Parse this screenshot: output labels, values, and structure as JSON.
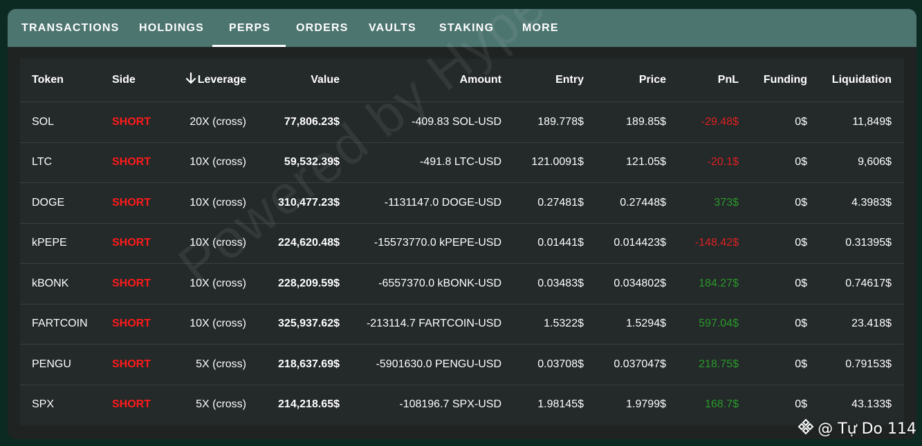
{
  "tabs": [
    {
      "label": "TRANSACTIONS"
    },
    {
      "label": "HOLDINGS"
    },
    {
      "label": "PERPS",
      "active": true
    },
    {
      "label": "ORDERS"
    },
    {
      "label": "VAULTS"
    },
    {
      "label": "STAKING"
    },
    {
      "label": "MORE"
    }
  ],
  "table": {
    "headers": {
      "token": "Token",
      "side": "Side",
      "leverage": "Leverage",
      "value": "Value",
      "amount": "Amount",
      "entry": "Entry",
      "price": "Price",
      "pnl": "PnL",
      "funding": "Funding",
      "liquidation": "Liquidation"
    },
    "sort_icon": "arrow-down-icon",
    "rows": [
      {
        "token": "SOL",
        "side": "SHORT",
        "leverage": "20X (cross)",
        "value": "77,806.23$",
        "amount": "-409.83 SOL-USD",
        "entry": "189.778$",
        "price": "189.85$",
        "pnl": "-29.48$",
        "pnl_sign": "neg",
        "funding": "0$",
        "liquidation": "11,849$"
      },
      {
        "token": "LTC",
        "side": "SHORT",
        "leverage": "10X (cross)",
        "value": "59,532.39$",
        "amount": "-491.8 LTC-USD",
        "entry": "121.0091$",
        "price": "121.05$",
        "pnl": "-20.1$",
        "pnl_sign": "neg",
        "funding": "0$",
        "liquidation": "9,606$"
      },
      {
        "token": "DOGE",
        "side": "SHORT",
        "leverage": "10X (cross)",
        "value": "310,477.23$",
        "amount": "-1131147.0 DOGE-USD",
        "entry": "0.27481$",
        "price": "0.27448$",
        "pnl": "373$",
        "pnl_sign": "pos",
        "funding": "0$",
        "liquidation": "4.3983$"
      },
      {
        "token": "kPEPE",
        "side": "SHORT",
        "leverage": "10X (cross)",
        "value": "224,620.48$",
        "amount": "-15573770.0 kPEPE-USD",
        "entry": "0.01441$",
        "price": "0.014423$",
        "pnl": "-148.42$",
        "pnl_sign": "neg",
        "funding": "0$",
        "liquidation": "0.31395$"
      },
      {
        "token": "kBONK",
        "side": "SHORT",
        "leverage": "10X (cross)",
        "value": "228,209.59$",
        "amount": "-6557370.0 kBONK-USD",
        "entry": "0.03483$",
        "price": "0.034802$",
        "pnl": "184.27$",
        "pnl_sign": "pos",
        "funding": "0$",
        "liquidation": "0.74617$"
      },
      {
        "token": "FARTCOIN",
        "side": "SHORT",
        "leverage": "10X (cross)",
        "value": "325,937.62$",
        "amount": "-213114.7 FARTCOIN-USD",
        "entry": "1.5322$",
        "price": "1.5294$",
        "pnl": "597.04$",
        "pnl_sign": "pos",
        "funding": "0$",
        "liquidation": "23.418$"
      },
      {
        "token": "PENGU",
        "side": "SHORT",
        "leverage": "5X (cross)",
        "value": "218,637.69$",
        "amount": "-5901630.0 PENGU-USD",
        "entry": "0.03708$",
        "price": "0.037047$",
        "pnl": "218.75$",
        "pnl_sign": "pos",
        "funding": "0$",
        "liquidation": "0.79153$"
      },
      {
        "token": "SPX",
        "side": "SHORT",
        "leverage": "5X (cross)",
        "value": "214,218.65$",
        "amount": "-108196.7 SPX-USD",
        "entry": "1.98145$",
        "price": "1.9799$",
        "pnl": "168.7$",
        "pnl_sign": "pos",
        "funding": "0$",
        "liquidation": "43.133$"
      }
    ]
  },
  "watermark": "Powered by Hyperliquid",
  "credit": {
    "text": "@ Tự Do 114",
    "icon": "binance-logo-icon"
  },
  "colors": {
    "background": "#0c2a22",
    "tabbar": "#4d7570",
    "panel": "#24292a",
    "short": "#ff1a1a",
    "pnl_negative": "#e02020",
    "pnl_positive": "#2a9a2a"
  }
}
